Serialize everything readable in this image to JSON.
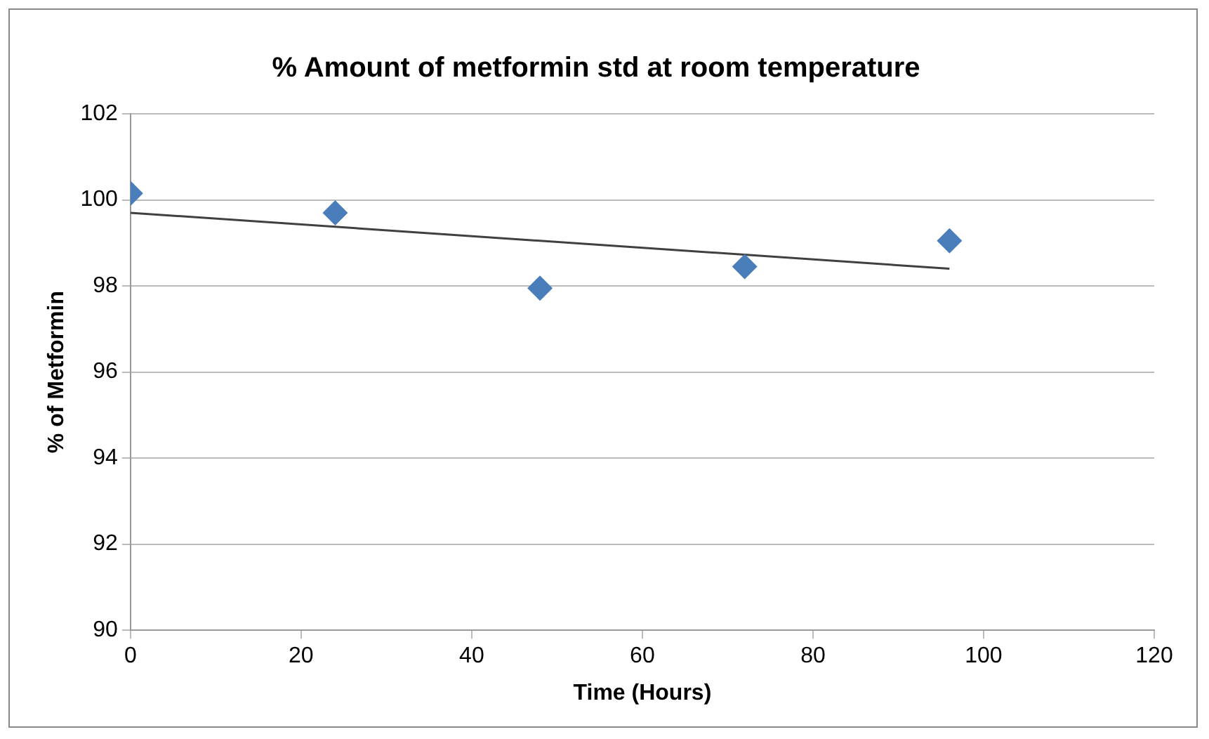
{
  "chart_data": {
    "type": "scatter",
    "title": "% Amount of metformin std at room temperature",
    "xlabel": "Time (Hours)",
    "ylabel": "% of Metformin",
    "x": [
      0,
      24,
      48,
      72,
      96
    ],
    "marker": "diamond",
    "grid": "y",
    "legend": false,
    "series": [
      {
        "color": "#4a7ebb",
        "values": [
          100.15,
          99.7,
          97.95,
          98.45,
          99.05
        ]
      },
      {
        "type": "line",
        "color": "#404040",
        "x": [
          0,
          96
        ],
        "values": [
          99.7,
          98.4
        ],
        "marker": "none"
      }
    ],
    "xlim": [
      0,
      120
    ],
    "xticks": [
      0,
      20,
      40,
      60,
      80,
      100,
      120
    ],
    "ylim": [
      90,
      102
    ],
    "yticks": [
      90,
      92,
      94,
      96,
      98,
      100,
      102
    ]
  }
}
